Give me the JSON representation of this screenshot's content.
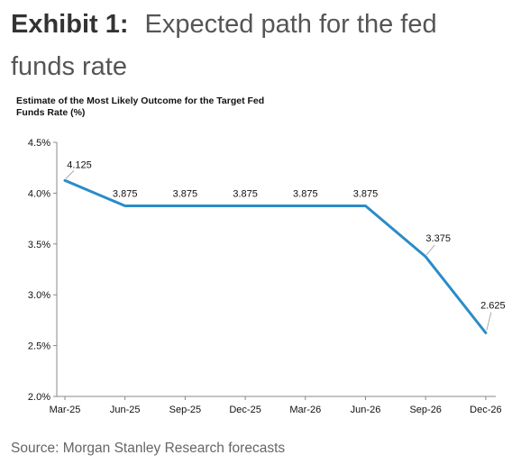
{
  "exhibit": {
    "label": "Exhibit 1:",
    "title": "Expected path for the fed funds rate"
  },
  "source": "Source: Morgan Stanley Research forecasts",
  "colors": {
    "line": "#2a8cc8",
    "axis": "#888888"
  },
  "chart_data": {
    "type": "line",
    "title": "Estimate of the Most Likely Outcome for the Target Fed Funds Rate (%)",
    "xlabel": "",
    "ylabel": "",
    "categories": [
      "Mar-25",
      "Jun-25",
      "Sep-25",
      "Dec-25",
      "Mar-26",
      "Jun-26",
      "Sep-26",
      "Dec-26"
    ],
    "series": [
      {
        "values": [
          4.125,
          3.875,
          3.875,
          3.875,
          3.875,
          3.875,
          3.375,
          2.625
        ],
        "data_labels": [
          "4.125",
          "3.875",
          "3.875",
          "3.875",
          "3.875",
          "3.875",
          "3.375",
          "2.625"
        ]
      }
    ],
    "ylim": [
      2.0,
      4.5
    ],
    "y_ticks": [
      2.0,
      2.5,
      3.0,
      3.5,
      4.0,
      4.5
    ],
    "y_tick_labels": [
      "2.0%",
      "2.5%",
      "3.0%",
      "3.5%",
      "4.0%",
      "4.5%"
    ],
    "grid": false,
    "legend": "none"
  }
}
